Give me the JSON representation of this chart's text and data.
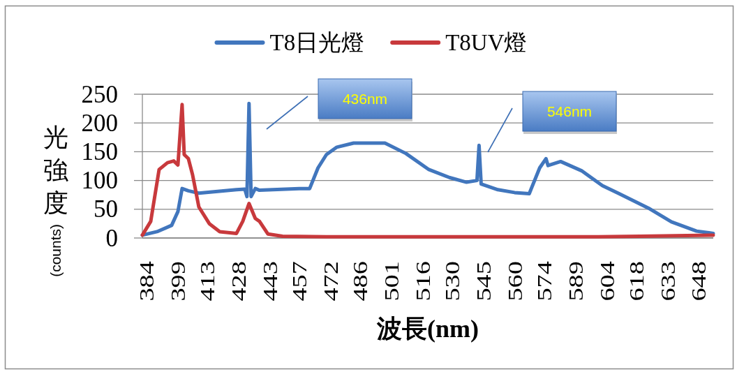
{
  "chart_data": {
    "type": "line",
    "xlabel": "波長(nm)",
    "ylabel": "光強度(counts)",
    "xlim": [
      382,
      655
    ],
    "ylim": [
      0,
      250
    ],
    "xticks": [
      384,
      399,
      413,
      428,
      443,
      457,
      472,
      486,
      501,
      516,
      530,
      545,
      560,
      574,
      589,
      604,
      618,
      633,
      648
    ],
    "yticks": [
      0,
      50,
      100,
      150,
      200,
      250
    ],
    "grid": "y",
    "legend": "top",
    "series": [
      {
        "name": "T8日光燈",
        "color": "#4176bd",
        "x": [
          382,
          389,
          396,
          399,
          401,
          404,
          409,
          427,
          431,
          432,
          433,
          434,
          436,
          438,
          457,
          462,
          466,
          470,
          475,
          483,
          498,
          508,
          519,
          529,
          537,
          542,
          543,
          544,
          552,
          560,
          567,
          572,
          575,
          576,
          582,
          592,
          602,
          610,
          624,
          635,
          647,
          655
        ],
        "values": [
          5,
          11,
          22,
          46,
          86,
          82,
          78,
          84,
          85,
          72,
          234,
          72,
          86,
          83,
          86,
          86,
          122,
          145,
          158,
          165,
          165,
          147,
          119,
          105,
          97,
          100,
          161,
          94,
          84,
          79,
          77,
          122,
          138,
          126,
          133,
          117,
          91,
          77,
          52,
          28,
          12,
          8
        ]
      },
      {
        "name": "T8UV燈",
        "color": "#c8393c",
        "x": [
          382,
          386,
          390,
          394,
          397,
          399,
          401,
          402,
          404,
          406,
          409,
          414,
          419,
          427,
          430,
          433,
          436,
          438,
          442,
          449,
          470,
          600,
          620,
          655
        ],
        "values": [
          5,
          29,
          119,
          131,
          134,
          127,
          232,
          145,
          138,
          110,
          54,
          25,
          11,
          8,
          29,
          60,
          34,
          29,
          7,
          3,
          2,
          2,
          3,
          5
        ]
      }
    ],
    "annotations": [
      "436nm",
      "546nm"
    ]
  }
}
